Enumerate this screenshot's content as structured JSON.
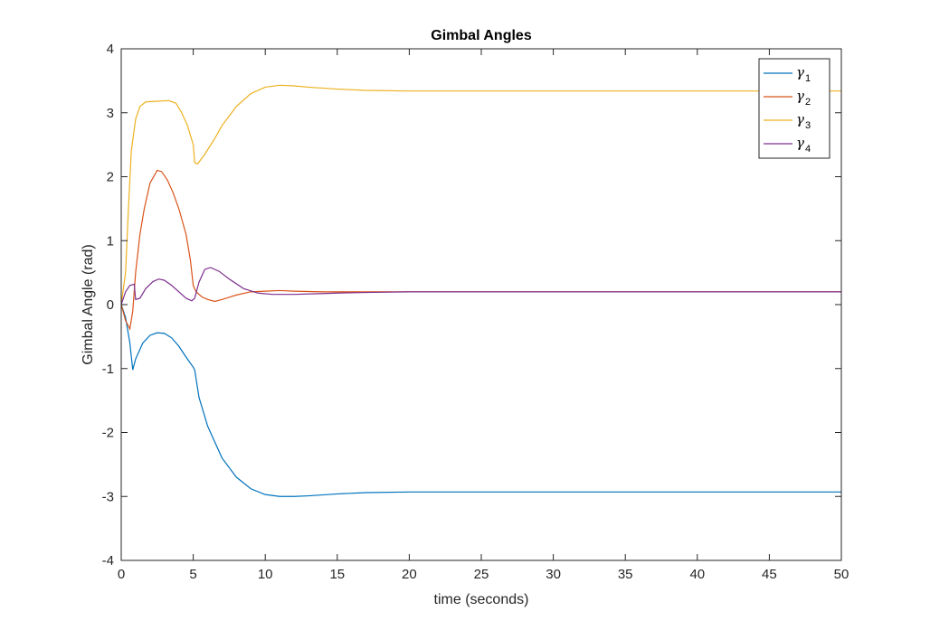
{
  "chart_data": {
    "type": "line",
    "title": "Gimbal Angles",
    "xlabel": "time (seconds)",
    "ylabel": "Gimbal Angle (rad)",
    "xlim": [
      0,
      50
    ],
    "ylim": [
      -4,
      4
    ],
    "xticks": [
      0,
      5,
      10,
      15,
      20,
      25,
      30,
      35,
      40,
      45,
      50
    ],
    "yticks": [
      -4,
      -3,
      -2,
      -1,
      0,
      1,
      2,
      3,
      4
    ],
    "grid": false,
    "legend_position": "top-right",
    "series": [
      {
        "name": "γ1",
        "legend_symbol": "γ",
        "legend_sub": "1",
        "color": "#0072BD",
        "points": [
          [
            0,
            0
          ],
          [
            0.3,
            -0.2
          ],
          [
            0.6,
            -0.6
          ],
          [
            0.8,
            -1.02
          ],
          [
            1.0,
            -0.85
          ],
          [
            1.5,
            -0.6
          ],
          [
            2.0,
            -0.48
          ],
          [
            2.5,
            -0.44
          ],
          [
            3.0,
            -0.45
          ],
          [
            3.5,
            -0.52
          ],
          [
            4.0,
            -0.65
          ],
          [
            4.5,
            -0.82
          ],
          [
            5.0,
            -0.98
          ],
          [
            5.1,
            -1.02
          ],
          [
            5.4,
            -1.45
          ],
          [
            6.0,
            -1.9
          ],
          [
            7.0,
            -2.4
          ],
          [
            8.0,
            -2.7
          ],
          [
            9.0,
            -2.88
          ],
          [
            10.0,
            -2.97
          ],
          [
            11.0,
            -3.0
          ],
          [
            12.0,
            -3.0
          ],
          [
            13.0,
            -2.99
          ],
          [
            15.0,
            -2.96
          ],
          [
            17.0,
            -2.94
          ],
          [
            20.0,
            -2.93
          ],
          [
            25.0,
            -2.93
          ],
          [
            30.0,
            -2.93
          ],
          [
            40.0,
            -2.93
          ],
          [
            50.0,
            -2.93
          ]
        ]
      },
      {
        "name": "γ2",
        "legend_symbol": "γ",
        "legend_sub": "2",
        "color": "#D95319",
        "points": [
          [
            0,
            0
          ],
          [
            0.3,
            -0.25
          ],
          [
            0.6,
            -0.38
          ],
          [
            0.8,
            -0.1
          ],
          [
            1.0,
            0.5
          ],
          [
            1.3,
            1.1
          ],
          [
            1.6,
            1.5
          ],
          [
            2.0,
            1.9
          ],
          [
            2.5,
            2.1
          ],
          [
            2.8,
            2.08
          ],
          [
            3.2,
            1.95
          ],
          [
            3.6,
            1.75
          ],
          [
            4.0,
            1.5
          ],
          [
            4.5,
            1.1
          ],
          [
            4.8,
            0.7
          ],
          [
            5.0,
            0.3
          ],
          [
            5.2,
            0.2
          ],
          [
            5.6,
            0.12
          ],
          [
            6.0,
            0.08
          ],
          [
            6.5,
            0.05
          ],
          [
            7.0,
            0.08
          ],
          [
            8.0,
            0.15
          ],
          [
            9.0,
            0.2
          ],
          [
            10.0,
            0.21
          ],
          [
            11.0,
            0.22
          ],
          [
            12.0,
            0.21
          ],
          [
            14.0,
            0.2
          ],
          [
            17.0,
            0.2
          ],
          [
            20.0,
            0.2
          ],
          [
            30.0,
            0.2
          ],
          [
            40.0,
            0.2
          ],
          [
            50.0,
            0.2
          ]
        ]
      },
      {
        "name": "γ3",
        "legend_symbol": "γ",
        "legend_sub": "3",
        "color": "#EDB120",
        "points": [
          [
            0,
            0
          ],
          [
            0.3,
            0.5
          ],
          [
            0.5,
            1.5
          ],
          [
            0.7,
            2.4
          ],
          [
            1.0,
            2.9
          ],
          [
            1.3,
            3.1
          ],
          [
            1.7,
            3.17
          ],
          [
            2.5,
            3.18
          ],
          [
            3.3,
            3.19
          ],
          [
            3.8,
            3.15
          ],
          [
            4.2,
            3.0
          ],
          [
            4.6,
            2.8
          ],
          [
            5.0,
            2.5
          ],
          [
            5.1,
            2.22
          ],
          [
            5.3,
            2.2
          ],
          [
            5.8,
            2.35
          ],
          [
            6.5,
            2.6
          ],
          [
            7.0,
            2.8
          ],
          [
            8.0,
            3.1
          ],
          [
            9.0,
            3.3
          ],
          [
            10.0,
            3.4
          ],
          [
            11.0,
            3.43
          ],
          [
            12.0,
            3.42
          ],
          [
            13.0,
            3.4
          ],
          [
            15.0,
            3.37
          ],
          [
            17.0,
            3.35
          ],
          [
            20.0,
            3.34
          ],
          [
            25.0,
            3.34
          ],
          [
            30.0,
            3.34
          ],
          [
            40.0,
            3.34
          ],
          [
            50.0,
            3.34
          ]
        ]
      },
      {
        "name": "γ4",
        "legend_symbol": "γ",
        "legend_sub": "4",
        "color": "#7E2F8E",
        "points": [
          [
            0,
            0
          ],
          [
            0.3,
            0.2
          ],
          [
            0.6,
            0.3
          ],
          [
            0.9,
            0.32
          ],
          [
            1.0,
            0.08
          ],
          [
            1.3,
            0.1
          ],
          [
            1.7,
            0.25
          ],
          [
            2.2,
            0.36
          ],
          [
            2.6,
            0.4
          ],
          [
            3.0,
            0.38
          ],
          [
            3.5,
            0.3
          ],
          [
            4.0,
            0.2
          ],
          [
            4.5,
            0.1
          ],
          [
            4.9,
            0.06
          ],
          [
            5.1,
            0.1
          ],
          [
            5.4,
            0.35
          ],
          [
            5.8,
            0.55
          ],
          [
            6.2,
            0.58
          ],
          [
            6.8,
            0.52
          ],
          [
            7.5,
            0.4
          ],
          [
            8.5,
            0.25
          ],
          [
            9.5,
            0.18
          ],
          [
            10.5,
            0.16
          ],
          [
            12.0,
            0.16
          ],
          [
            13.5,
            0.17
          ],
          [
            15.0,
            0.18
          ],
          [
            17.0,
            0.19
          ],
          [
            20.0,
            0.2
          ],
          [
            30.0,
            0.2
          ],
          [
            40.0,
            0.2
          ],
          [
            50.0,
            0.2
          ]
        ]
      }
    ]
  }
}
